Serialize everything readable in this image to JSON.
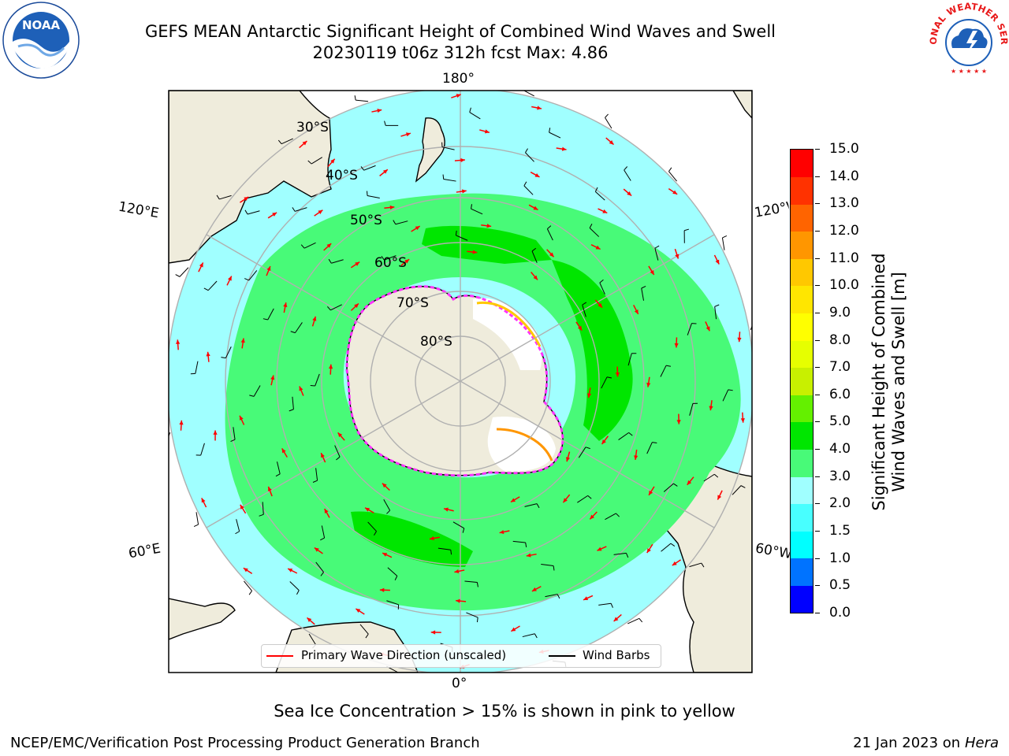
{
  "header": {
    "title_line1": "GEFS MEAN Antarctic Significant Height of Combined Wind Waves and Swell",
    "title_line2": "20230119 t06z 312h fcst   Max: 4.86"
  },
  "logos": {
    "left": {
      "name": "NOAA",
      "ring_text": "NATIONAL OCEANIC AND ATMOSPHERIC ADMINISTRATION · U.S. DEPARTMENT OF COMMERCE"
    },
    "right": {
      "name": "NATIONAL WEATHER SERVICE"
    }
  },
  "map": {
    "projection": "south-polar-stereographic",
    "longitude_labels": {
      "top": "180°",
      "bottom": "0°",
      "upper_left": "120°E",
      "lower_left": "60°E",
      "upper_right": "120°W",
      "lower_right": "60°W"
    },
    "latitude_labels": [
      "30°S",
      "40°S",
      "50°S",
      "60°S",
      "70°S",
      "80°S"
    ],
    "max_value": 4.86,
    "colors": {
      "land": "#efecdc",
      "ice": "#ffffff",
      "ice_edge": "#ff33ff",
      "grid": "#b0b0b0",
      "arrow": "#ff0000",
      "barb": "#000000"
    }
  },
  "colorbar": {
    "label_line1": "Significant Height of Combined",
    "label_line2": "Wind Waves and Swell [m]",
    "ticks": [
      "0.0",
      "0.5",
      "1.0",
      "1.5",
      "2.0",
      "3.0",
      "4.0",
      "5.0",
      "6.0",
      "7.0",
      "8.0",
      "9.0",
      "10.0",
      "11.0",
      "12.0",
      "13.0",
      "14.0",
      "15.0"
    ],
    "colors": [
      "#0000ff",
      "#0073ff",
      "#00ffff",
      "#48ffff",
      "#a0ffff",
      "#48fa78",
      "#00e600",
      "#64f000",
      "#c8f000",
      "#e6ff00",
      "#ffff00",
      "#ffe600",
      "#ffc800",
      "#ff9600",
      "#ff6400",
      "#ff3200",
      "#ff0000"
    ]
  },
  "legend": {
    "primary_wave": "Primary Wave Direction (unscaled)",
    "wind_barbs": "Wind Barbs"
  },
  "caption": "Sea Ice Concentration > 15% is shown in pink to yellow",
  "footer": {
    "left": "NCEP/EMC/Verification Post Processing Product Generation Branch",
    "date": "21 Jan 2023 on ",
    "host": "Hera"
  }
}
